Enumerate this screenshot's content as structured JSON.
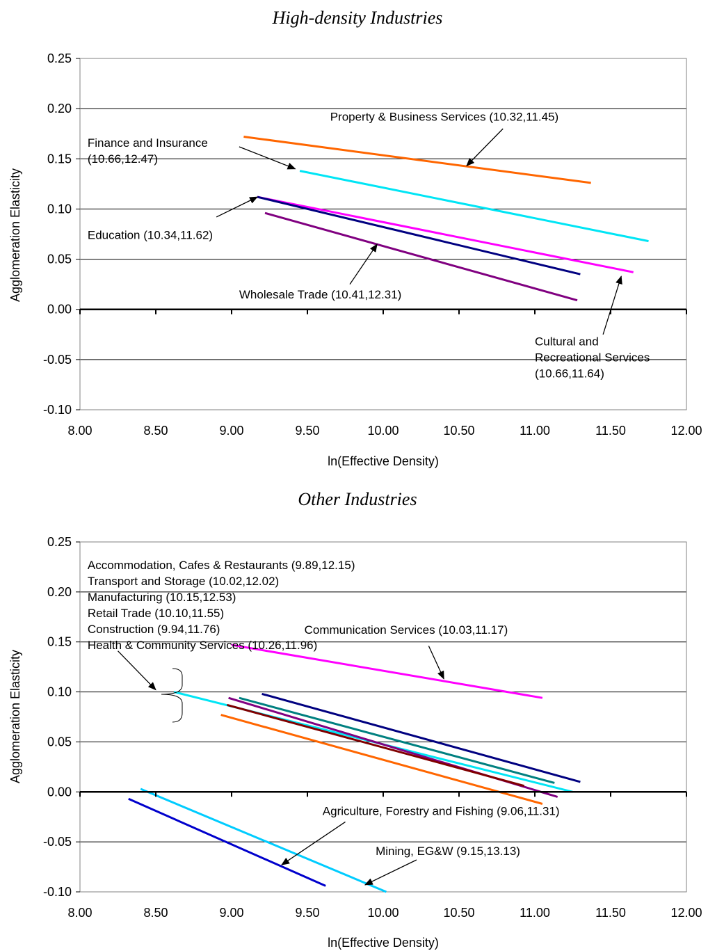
{
  "chart_data": [
    {
      "type": "line",
      "title": "High-density Industries",
      "xlabel": "ln(Effective Density)",
      "ylabel": "Agglomeration Elasticity",
      "xlim": [
        8.0,
        12.0
      ],
      "ylim": [
        -0.1,
        0.25
      ],
      "x_ticks": [
        "8.00",
        "8.50",
        "9.00",
        "9.50",
        "10.00",
        "10.50",
        "11.00",
        "11.50",
        "12.00"
      ],
      "y_ticks": [
        "0.25",
        "0.20",
        "0.15",
        "0.10",
        "0.05",
        "0.00",
        "-0.05",
        "-0.10"
      ],
      "grid": "horizontal",
      "series": [
        {
          "x": [
            9.08,
            11.37
          ],
          "y": [
            0.172,
            0.126
          ],
          "color": "#FF6600"
        },
        {
          "x": [
            9.45,
            11.75
          ],
          "y": [
            0.138,
            0.068
          ],
          "color": "#00E5F5"
        },
        {
          "x": [
            9.17,
            11.65
          ],
          "y": [
            0.112,
            0.037
          ],
          "color": "#FF00FF"
        },
        {
          "x": [
            9.17,
            11.3
          ],
          "y": [
            0.112,
            0.035
          ],
          "color": "#000080"
        },
        {
          "x": [
            9.22,
            11.28
          ],
          "y": [
            0.096,
            0.009
          ],
          "color": "#800080"
        }
      ],
      "annotations": [
        {
          "lines": [
            "Property & Business Services (10.32,11.45)"
          ],
          "text_x": 9.65,
          "text_y": 0.188,
          "arrow_from": [
            10.79,
            0.18
          ],
          "arrow_to": [
            10.55,
            0.143
          ]
        },
        {
          "lines": [
            "Finance and Insurance",
            "(10.66,12.47)"
          ],
          "text_x": 8.05,
          "text_y": 0.162,
          "arrow_from": [
            9.05,
            0.162
          ],
          "arrow_to": [
            9.42,
            0.14
          ]
        },
        {
          "lines": [
            "Education (10.34,11.62)"
          ],
          "text_x": 8.05,
          "text_y": 0.07,
          "arrow_from": [
            8.9,
            0.092
          ],
          "arrow_to": [
            9.17,
            0.112
          ]
        },
        {
          "lines": [
            "Wholesale Trade (10.41,12.31)"
          ],
          "text_x": 9.05,
          "text_y": 0.011,
          "arrow_from": [
            9.78,
            0.025
          ],
          "arrow_to": [
            9.96,
            0.065
          ]
        },
        {
          "lines": [
            "Cultural and",
            "Recreational Services",
            "(10.66,11.64)"
          ],
          "text_x": 11.0,
          "text_y": -0.036,
          "arrow_from": [
            11.45,
            -0.025
          ],
          "arrow_to": [
            11.57,
            0.033
          ]
        }
      ]
    },
    {
      "type": "line",
      "title": "Other Industries",
      "xlabel": "ln(Effective Density)",
      "ylabel": "Agglomeration Elasticity",
      "xlim": [
        8.0,
        12.0
      ],
      "ylim": [
        -0.1,
        0.25
      ],
      "x_ticks": [
        "8.00",
        "8.50",
        "9.00",
        "9.50",
        "10.00",
        "10.50",
        "11.00",
        "11.50",
        "12.00"
      ],
      "y_ticks": [
        "0.25",
        "0.20",
        "0.15",
        "0.10",
        "0.05",
        "0.00",
        "-0.05",
        "-0.10"
      ],
      "grid": "horizontal",
      "series": [
        {
          "x": [
            9.0,
            11.05
          ],
          "y": [
            0.147,
            0.094
          ],
          "color": "#FF00FF"
        },
        {
          "x": [
            9.2,
            11.3
          ],
          "y": [
            0.098,
            0.01
          ],
          "color": "#000080"
        },
        {
          "x": [
            9.05,
            11.13
          ],
          "y": [
            0.094,
            0.009
          ],
          "color": "#008080"
        },
        {
          "x": [
            8.62,
            11.25
          ],
          "y": [
            0.1,
            0.0
          ],
          "color": "#00E5F5"
        },
        {
          "x": [
            8.98,
            11.15
          ],
          "y": [
            0.094,
            -0.005
          ],
          "color": "#800080"
        },
        {
          "x": [
            8.97,
            10.93
          ],
          "y": [
            0.087,
            0.006
          ],
          "color": "#800000"
        },
        {
          "x": [
            8.93,
            11.05
          ],
          "y": [
            0.077,
            -0.012
          ],
          "color": "#FF6600"
        },
        {
          "x": [
            8.4,
            10.02
          ],
          "y": [
            0.003,
            -0.1
          ],
          "color": "#00CCFF"
        },
        {
          "x": [
            8.32,
            9.62
          ],
          "y": [
            -0.007,
            -0.094
          ],
          "color": "#0000CC"
        }
      ],
      "annotations": [
        {
          "lines": [
            "Accommodation, Cafes & Restaurants (9.89,12.15)",
            "Transport and Storage (10.02,12.02)",
            "Manufacturing (10.15,12.53)",
            "Retail Trade (10.10,11.55)",
            "Construction (9.94,11.76)",
            "Health & Community Services (10.26,11.96)"
          ],
          "text_x": 8.05,
          "text_y": 0.223,
          "arrow_from": [
            8.25,
            0.141
          ],
          "arrow_to": [
            8.5,
            0.102
          ]
        },
        {
          "lines": [
            "Communication Services (10.03,11.17)"
          ],
          "text_x": 9.48,
          "text_y": 0.158,
          "arrow_from": [
            10.3,
            0.146
          ],
          "arrow_to": [
            10.4,
            0.113
          ]
        },
        {
          "lines": [
            "Agriculture, Forestry and Fishing (9.06,11.31)"
          ],
          "text_x": 9.6,
          "text_y": -0.023,
          "arrow_from": [
            9.75,
            -0.03
          ],
          "arrow_to": [
            9.33,
            -0.073
          ]
        },
        {
          "lines": [
            "Mining, EG&W (9.15,13.13)"
          ],
          "text_x": 9.95,
          "text_y": -0.063,
          "arrow_from": [
            10.22,
            -0.068
          ],
          "arrow_to": [
            9.88,
            -0.093
          ]
        }
      ]
    }
  ]
}
